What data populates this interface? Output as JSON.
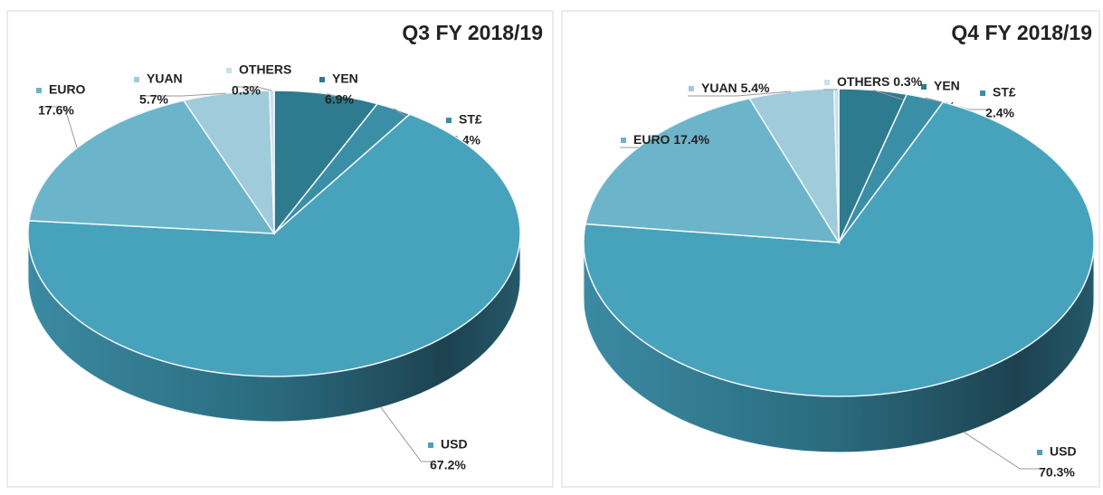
{
  "chart_data": [
    {
      "type": "pie",
      "title": "Q3 FY 2018/19",
      "categories": [
        "YEN",
        "ST£",
        "USD",
        "EURO",
        "YUAN",
        "OTHERS"
      ],
      "values": [
        6.9,
        2.4,
        67.2,
        17.6,
        5.7,
        0.3
      ],
      "value_labels": [
        "6.9%",
        "2.4%",
        "67.2%",
        "17.6%",
        "5.7%",
        "0.3%"
      ],
      "colors": [
        "#2e7a8f",
        "#3a8ea6",
        "#47a2bc",
        "#6cb4c9",
        "#a0cbdb",
        "#c8e1eb"
      ]
    },
    {
      "type": "pie",
      "title": "Q4 FY 2018/19",
      "categories": [
        "YEN",
        "ST£",
        "USD",
        "EURO",
        "YUAN",
        "OTHERS"
      ],
      "values": [
        4.3,
        2.4,
        70.3,
        17.4,
        5.4,
        0.3
      ],
      "value_labels": [
        "4.3%",
        "2.4%",
        "70.3%",
        "17.4%",
        "5.4%",
        "0.3%"
      ],
      "colors": [
        "#2e7a8f",
        "#3a8ea6",
        "#47a2bc",
        "#6cb4c9",
        "#a0cbdb",
        "#c8e1eb"
      ]
    }
  ]
}
